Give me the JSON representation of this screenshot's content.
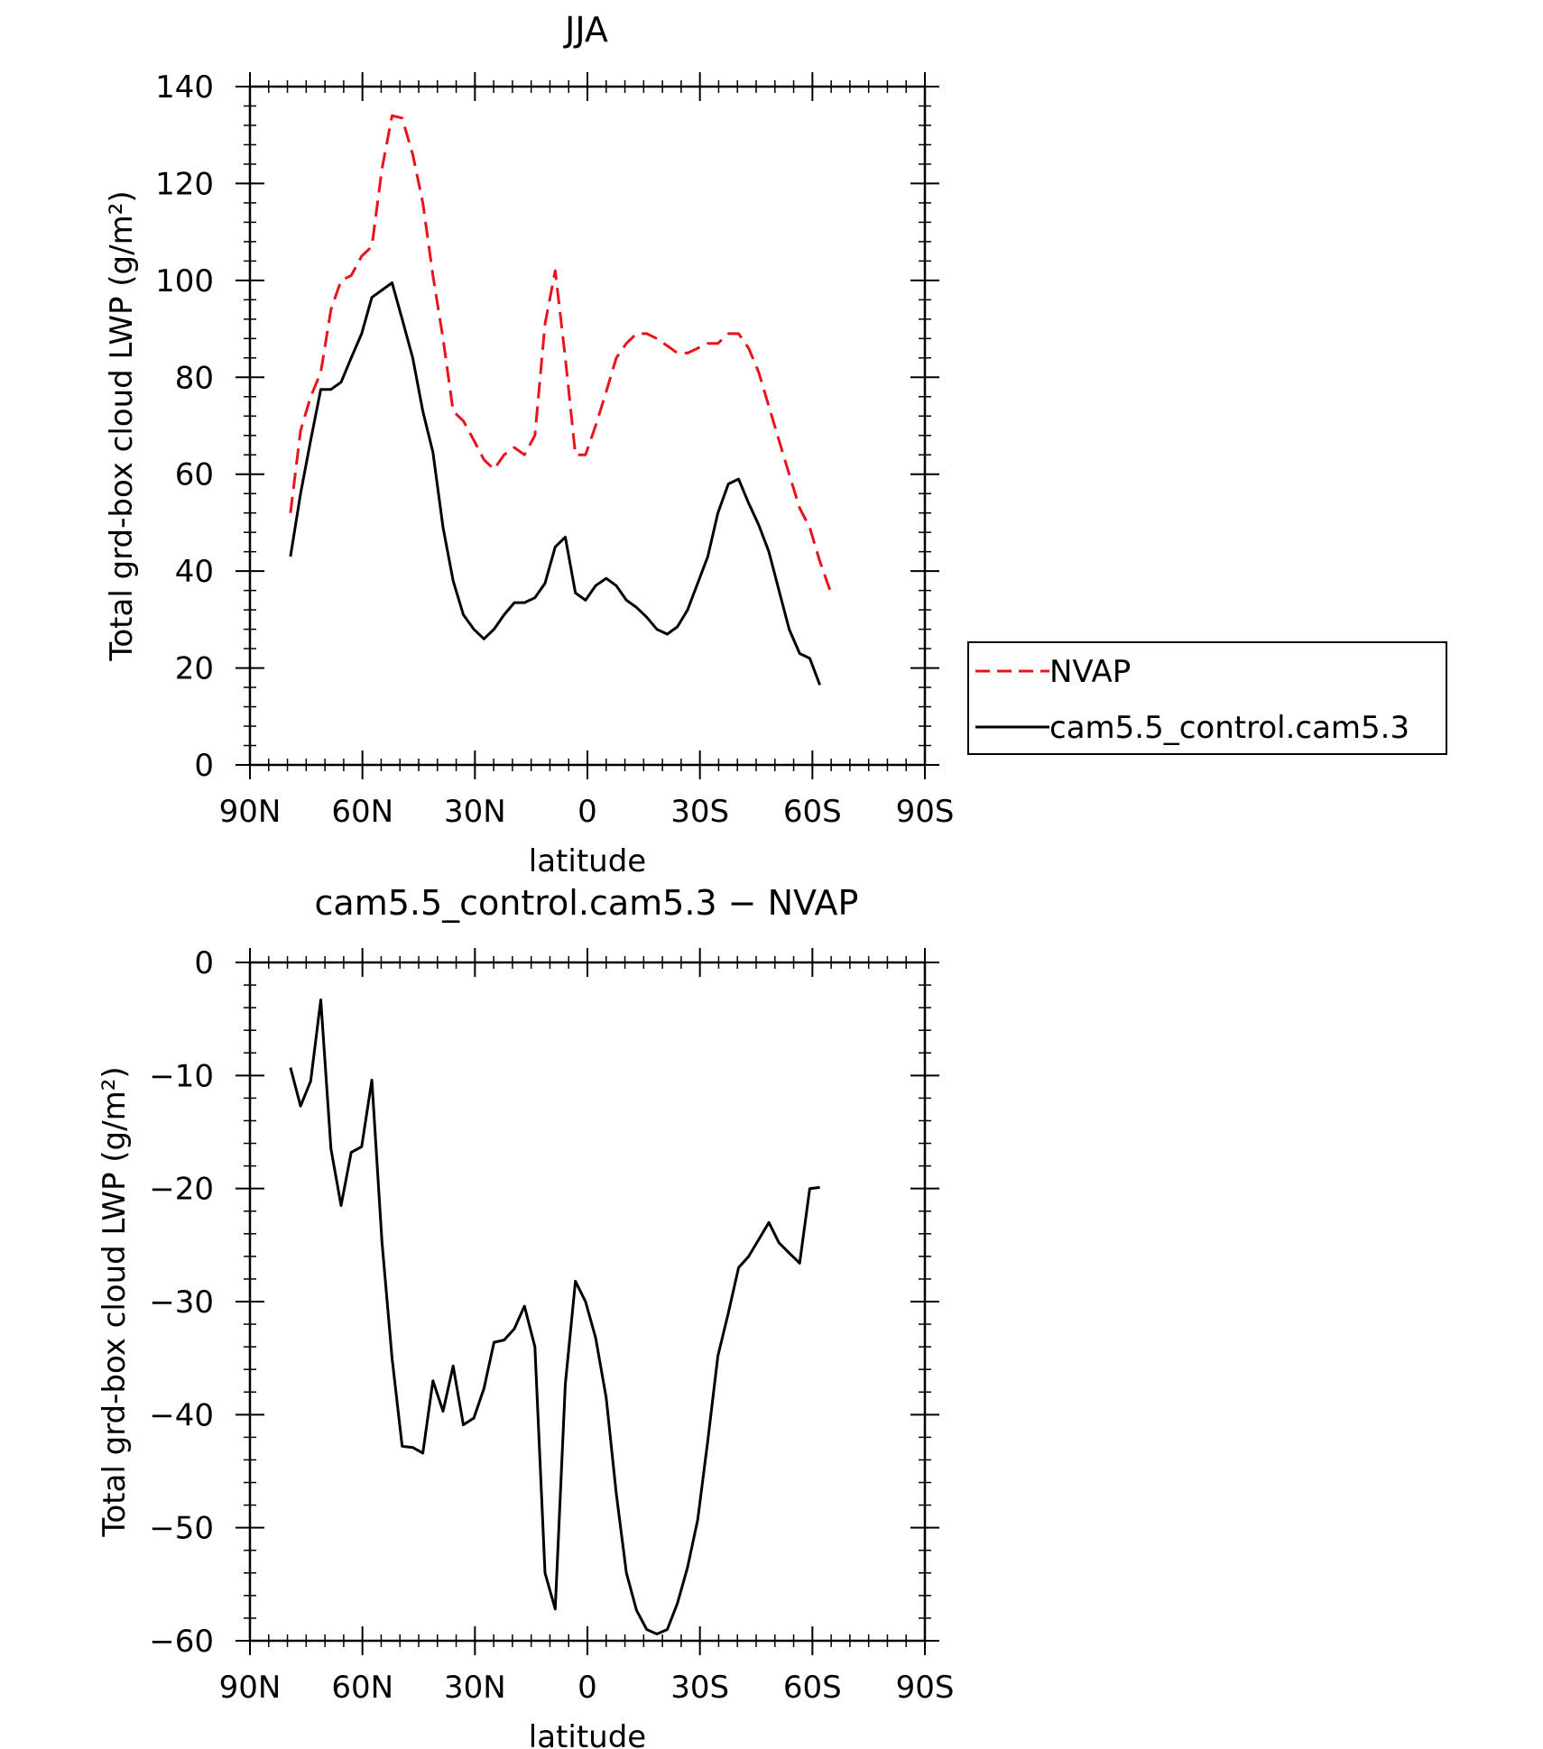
{
  "chart_data": [
    {
      "type": "line",
      "title": "JJA",
      "xlabel": "latitude",
      "ylabel": "Total grd-box cloud LWP (g/m²)",
      "ylim": [
        0,
        140
      ],
      "y_ticks": [
        0,
        20,
        40,
        60,
        80,
        100,
        120,
        140
      ],
      "xlim": [
        90,
        -90
      ],
      "x_ticks": [
        {
          "value": 90,
          "label": "90N"
        },
        {
          "value": 60,
          "label": "60N"
        },
        {
          "value": 30,
          "label": "30N"
        },
        {
          "value": 0,
          "label": "0"
        },
        {
          "value": -30,
          "label": "30S"
        },
        {
          "value": -60,
          "label": "60S"
        },
        {
          "value": -90,
          "label": "90S"
        }
      ],
      "legend_position": "right",
      "series": [
        {
          "name": "NVAP",
          "color": "#e8141c",
          "style": "dashed",
          "points": [
            [
              79.2,
              52
            ],
            [
              76.5,
              69
            ],
            [
              73.8,
              76
            ],
            [
              71.1,
              81
            ],
            [
              68.4,
              94
            ],
            [
              65.7,
              100
            ],
            [
              63,
              101
            ],
            [
              60.2,
              105
            ],
            [
              57.5,
              107
            ],
            [
              54.8,
              123
            ],
            [
              52.1,
              134
            ],
            [
              49.4,
              133.5
            ],
            [
              46.6,
              126
            ],
            [
              43.9,
              116
            ],
            [
              41.2,
              101
            ],
            [
              38.5,
              88
            ],
            [
              35.8,
              73
            ],
            [
              33.1,
              71
            ],
            [
              30.3,
              67
            ],
            [
              27.6,
              63
            ],
            [
              24.9,
              61
            ],
            [
              22.2,
              64
            ],
            [
              19.5,
              65.5
            ],
            [
              16.8,
              64
            ],
            [
              14,
              68
            ],
            [
              11.3,
              91
            ],
            [
              8.6,
              102
            ],
            [
              5.9,
              84
            ],
            [
              3.2,
              64
            ],
            [
              0.5,
              64
            ],
            [
              -2.2,
              70
            ],
            [
              -5,
              77
            ],
            [
              -7.7,
              84
            ],
            [
              -10.4,
              87
            ],
            [
              -13.1,
              89
            ],
            [
              -15.8,
              89
            ],
            [
              -18.5,
              88
            ],
            [
              -21.3,
              86.5
            ],
            [
              -24,
              85
            ],
            [
              -26.7,
              85
            ],
            [
              -29.4,
              86
            ],
            [
              -32.1,
              87
            ],
            [
              -34.8,
              87
            ],
            [
              -37.6,
              89
            ],
            [
              -40.3,
              89
            ],
            [
              -43,
              86
            ],
            [
              -45.7,
              81
            ],
            [
              -48.4,
              74
            ],
            [
              -51.1,
              67
            ],
            [
              -53.8,
              60
            ],
            [
              -56.6,
              53
            ],
            [
              -59.3,
              49
            ],
            [
              -62,
              42
            ],
            [
              -64.7,
              36
            ]
          ]
        },
        {
          "name": "cam5.5_control.cam5.3",
          "color": "#000000",
          "style": "solid",
          "points": [
            [
              79.2,
              43
            ],
            [
              76.5,
              56
            ],
            [
              73.8,
              67
            ],
            [
              71.1,
              77.5
            ],
            [
              68.4,
              77.5
            ],
            [
              65.7,
              79
            ],
            [
              63,
              84
            ],
            [
              60.2,
              89
            ],
            [
              57.5,
              96.5
            ],
            [
              54.8,
              98
            ],
            [
              52.1,
              99.5
            ],
            [
              49.4,
              92
            ],
            [
              46.6,
              84
            ],
            [
              43.9,
              73
            ],
            [
              41.2,
              64.5
            ],
            [
              38.5,
              49
            ],
            [
              35.8,
              38
            ],
            [
              33.1,
              31
            ],
            [
              30.3,
              28
            ],
            [
              27.6,
              26
            ],
            [
              24.9,
              28
            ],
            [
              22.2,
              31
            ],
            [
              19.5,
              33.5
            ],
            [
              16.8,
              33.5
            ],
            [
              14,
              34.5
            ],
            [
              11.3,
              37.5
            ],
            [
              8.6,
              45
            ],
            [
              5.9,
              47
            ],
            [
              3.2,
              35.5
            ],
            [
              0.5,
              34
            ],
            [
              -2.2,
              37
            ],
            [
              -5,
              38.5
            ],
            [
              -7.7,
              37
            ],
            [
              -10.4,
              34
            ],
            [
              -13.1,
              32.5
            ],
            [
              -15.8,
              30.5
            ],
            [
              -18.5,
              28
            ],
            [
              -21.3,
              27
            ],
            [
              -24,
              28.5
            ],
            [
              -26.7,
              32
            ],
            [
              -29.4,
              37.5
            ],
            [
              -32.1,
              43
            ],
            [
              -34.8,
              52
            ],
            [
              -37.6,
              58
            ],
            [
              -40.3,
              59
            ],
            [
              -43,
              54
            ],
            [
              -45.7,
              49.5
            ],
            [
              -48.4,
              44
            ],
            [
              -51.1,
              36
            ],
            [
              -53.8,
              28
            ],
            [
              -56.6,
              23
            ],
            [
              -59.3,
              22
            ],
            [
              -62,
              16.5
            ]
          ]
        }
      ]
    },
    {
      "type": "line",
      "title": "cam5.5_control.cam5.3 − NVAP",
      "xlabel": "latitude",
      "ylabel": "Total grd-box cloud LWP (g/m²)",
      "ylim": [
        -60,
        0
      ],
      "y_ticks": [
        -60,
        -50,
        -40,
        -30,
        -20,
        -10,
        0
      ],
      "xlim": [
        90,
        -90
      ],
      "x_ticks": [
        {
          "value": 90,
          "label": "90N"
        },
        {
          "value": 60,
          "label": "60N"
        },
        {
          "value": 30,
          "label": "30N"
        },
        {
          "value": 0,
          "label": "0"
        },
        {
          "value": -30,
          "label": "30S"
        },
        {
          "value": -60,
          "label": "60S"
        },
        {
          "value": -90,
          "label": "90S"
        }
      ],
      "series": [
        {
          "color": "#000000",
          "style": "solid",
          "points": [
            [
              79.2,
              -9.3
            ],
            [
              76.5,
              -12.7
            ],
            [
              73.8,
              -10.5
            ],
            [
              71.1,
              -3.3
            ],
            [
              68.4,
              -16.5
            ],
            [
              65.7,
              -21.5
            ],
            [
              63,
              -16.8
            ],
            [
              60.2,
              -16.3
            ],
            [
              57.5,
              -10.4
            ],
            [
              54.8,
              -24.7
            ],
            [
              52.1,
              -35
            ],
            [
              49.4,
              -42.8
            ],
            [
              46.6,
              -42.9
            ],
            [
              43.9,
              -43.4
            ],
            [
              41.2,
              -37
            ],
            [
              38.5,
              -39.7
            ],
            [
              35.8,
              -35.7
            ],
            [
              33.1,
              -40.9
            ],
            [
              30.3,
              -40.3
            ],
            [
              27.6,
              -37.7
            ],
            [
              24.9,
              -33.6
            ],
            [
              22.2,
              -33.4
            ],
            [
              19.5,
              -32.4
            ],
            [
              16.8,
              -30.4
            ],
            [
              14,
              -34
            ],
            [
              11.3,
              -54
            ],
            [
              8.6,
              -57.2
            ],
            [
              5.9,
              -37.3
            ],
            [
              3.2,
              -28.2
            ],
            [
              0.5,
              -30
            ],
            [
              -2.2,
              -33.2
            ],
            [
              -5,
              -38.5
            ],
            [
              -7.7,
              -47
            ],
            [
              -10.4,
              -54
            ],
            [
              -13.1,
              -57.3
            ],
            [
              -15.8,
              -59
            ],
            [
              -18.5,
              -59.4
            ],
            [
              -21.3,
              -59
            ],
            [
              -24,
              -56.7
            ],
            [
              -26.7,
              -53.5
            ],
            [
              -29.4,
              -49.3
            ],
            [
              -32.1,
              -42.3
            ],
            [
              -34.8,
              -34.8
            ],
            [
              -37.6,
              -31
            ],
            [
              -40.3,
              -27
            ],
            [
              -43,
              -26
            ],
            [
              -45.7,
              -24.5
            ],
            [
              -48.4,
              -23
            ],
            [
              -51.1,
              -24.8
            ],
            [
              -53.8,
              -25.7
            ],
            [
              -56.6,
              -26.6
            ],
            [
              -59.3,
              -20
            ],
            [
              -62,
              -19.9
            ]
          ]
        }
      ]
    }
  ]
}
